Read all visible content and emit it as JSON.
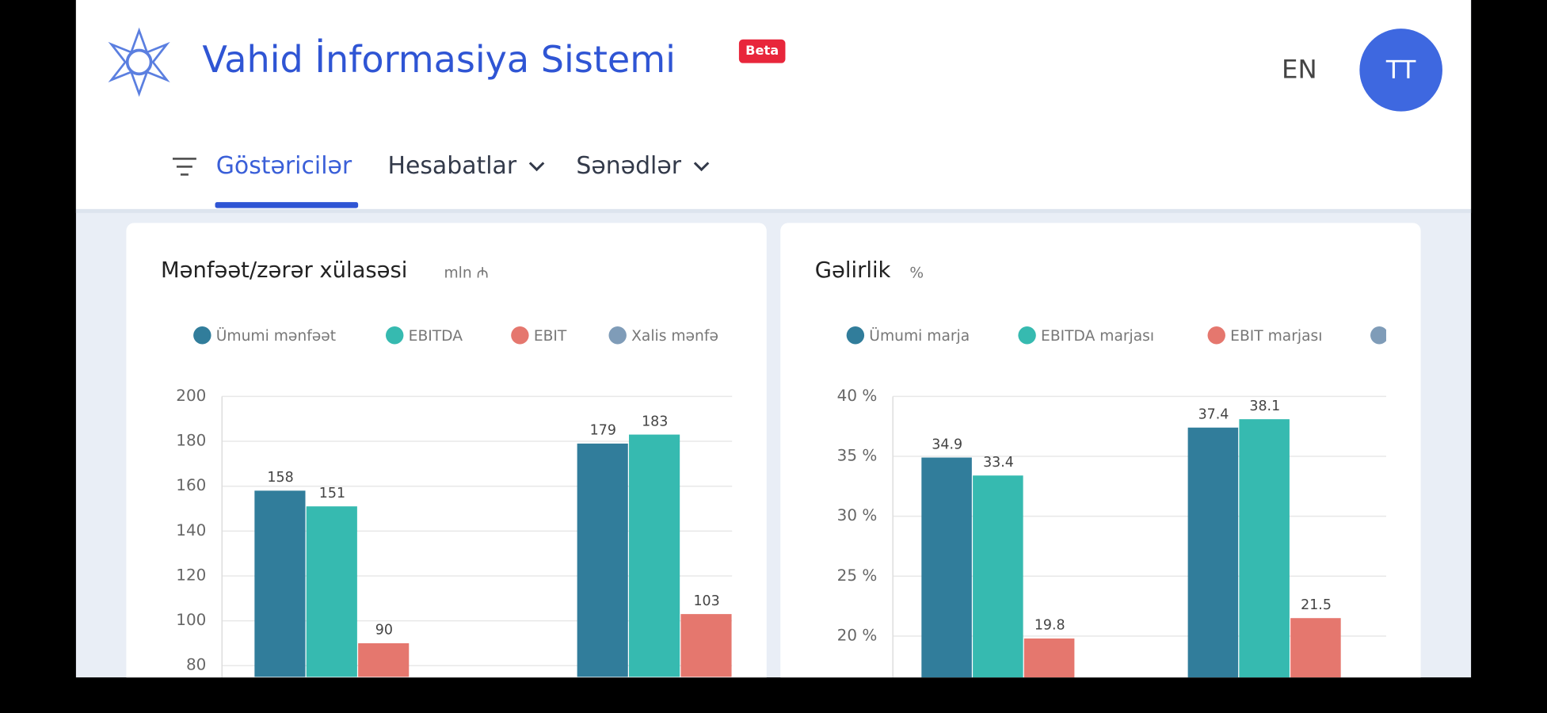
{
  "header": {
    "title": "Vahid İnformasiya Sistemi",
    "badge": "Beta",
    "language": "EN",
    "avatar": "TT"
  },
  "nav": {
    "items": [
      "Göstəricilər",
      "Hesabatlar",
      "Sənədlər"
    ]
  },
  "chart_data": [
    {
      "type": "bar",
      "title": "Mənfəət/zərər xülasəsi",
      "subtitle": "mln ₼",
      "categories": [
        null,
        null
      ],
      "series": [
        {
          "name": "Ümumi mənfəət",
          "color": "#317d9b",
          "values": [
            158,
            179
          ]
        },
        {
          "name": "EBITDA",
          "color": "#36bab0",
          "values": [
            151,
            183
          ]
        },
        {
          "name": "EBIT",
          "color": "#e5776e",
          "values": [
            90,
            103
          ]
        },
        {
          "name": "Xalis mənfə",
          "color": "#7f9cb8",
          "values": [
            null,
            null
          ]
        }
      ],
      "ylim": [
        75,
        200
      ],
      "yticks": [
        80,
        100,
        120,
        140,
        160,
        180,
        200
      ],
      "grid": true
    },
    {
      "type": "bar",
      "title": "Gəlirlik",
      "subtitle": "%",
      "categories": [
        null,
        null
      ],
      "series": [
        {
          "name": "Ümumi marja",
          "color": "#317d9b",
          "values": [
            34.9,
            37.4
          ]
        },
        {
          "name": "EBITDA marjası",
          "color": "#36bab0",
          "values": [
            33.4,
            38.1
          ]
        },
        {
          "name": "EBIT marjası",
          "color": "#e5776e",
          "values": [
            19.8,
            21.5
          ]
        },
        {
          "color": "#7f9cb8",
          "values": [
            null,
            null
          ]
        }
      ],
      "ylim": [
        16.5,
        40
      ],
      "yticks": [
        {
          "value": 20,
          "label": "20 %"
        },
        {
          "value": 25,
          "label": "25 %"
        },
        {
          "value": 30,
          "label": "30 %"
        },
        {
          "value": 35,
          "label": "35 %"
        },
        {
          "value": 40,
          "label": "40 %"
        }
      ],
      "grid": true
    }
  ]
}
